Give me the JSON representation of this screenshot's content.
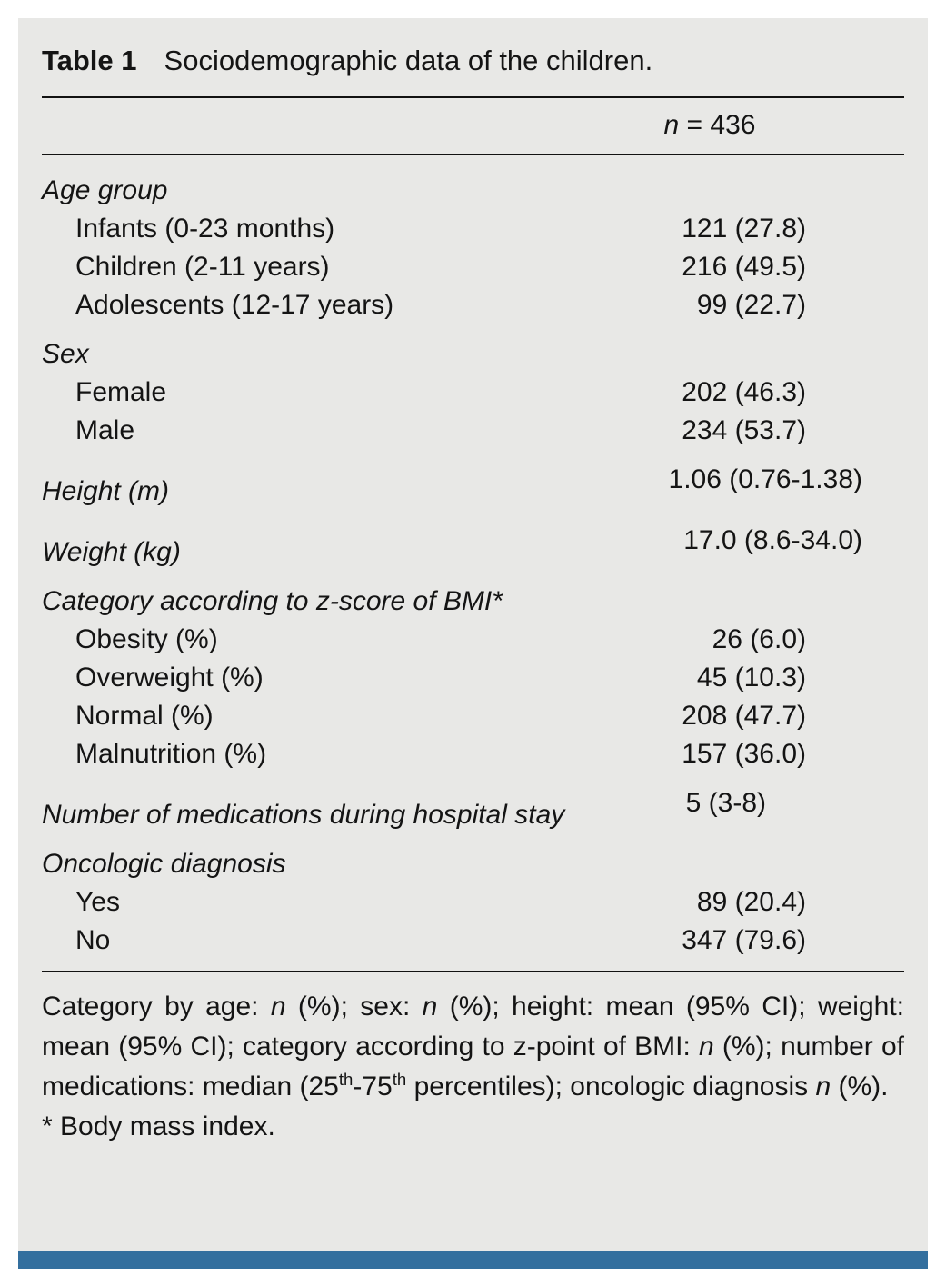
{
  "table": {
    "title_label": "Table 1",
    "title_text": "Sociodemographic data of the children.",
    "column_header_segments": [
      {
        "t": "n",
        "i": true
      },
      {
        "t": " = 436"
      }
    ],
    "sections": [
      {
        "header": "Age group",
        "rows": [
          {
            "label": "Infants (0-23 months)",
            "value": "121 (27.8)"
          },
          {
            "label": "Children (2-11 years)",
            "value": "216 (49.5)"
          },
          {
            "label": "Adolescents (12-17 years)",
            "value": "99 (22.7)"
          }
        ]
      },
      {
        "header": "Sex",
        "rows": [
          {
            "label": "Female",
            "value": "202 (46.3)"
          },
          {
            "label": "Male",
            "value": "234 (53.7)"
          }
        ]
      },
      {
        "header": "Height (m)",
        "value": "1.06 (0.76-1.38)"
      },
      {
        "header": "Weight (kg)",
        "value": "17.0 (8.6-34.0)"
      },
      {
        "header": "Category according to z-score of BMI*",
        "rows": [
          {
            "label": "Obesity (%)",
            "value": "26 (6.0)"
          },
          {
            "label": "Overweight (%)",
            "value": "45 (10.3)"
          },
          {
            "label": "Normal (%)",
            "value": "208 (47.7)"
          },
          {
            "label": "Malnutrition (%)",
            "value": "157 (36.0)"
          }
        ]
      },
      {
        "header": "Number of medications during hospital stay",
        "value": "5 (3-8)"
      },
      {
        "header": "Oncologic diagnosis",
        "rows": [
          {
            "label": "Yes",
            "value": "89 (20.4)"
          },
          {
            "label": "No",
            "value": "347 (79.6)"
          }
        ]
      }
    ],
    "footnote_segments": [
      {
        "t": "Category by age: "
      },
      {
        "t": "n",
        "i": true
      },
      {
        "t": " (%); sex: "
      },
      {
        "t": "n",
        "i": true
      },
      {
        "t": " (%); height: mean (95% CI); weight: mean (95% CI); category according to z-point of BMI: "
      },
      {
        "t": "n",
        "i": true
      },
      {
        "t": " (%); number of medications: median (25"
      },
      {
        "t": "th",
        "sup": true
      },
      {
        "t": "-75"
      },
      {
        "t": "th",
        "sup": true
      },
      {
        "t": " percentiles); oncologic diagnosis "
      },
      {
        "t": "n",
        "i": true
      },
      {
        "t": " (%)."
      }
    ],
    "footnote_bmi": "* Body mass index."
  },
  "colors": {
    "panel_bg": "#e8e8e6",
    "accent_bar": "#336f9e",
    "text": "#141414",
    "rule": "#121212"
  }
}
